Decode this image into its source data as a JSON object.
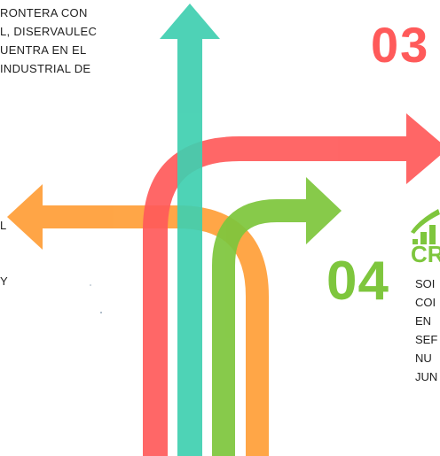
{
  "left_text": {
    "lines": [
      "RONTERA CON",
      "L, DISERVAULEC",
      "UENTRA EN EL",
      "INDUSTRIAL DE"
    ],
    "fragments": [
      "L",
      "Y"
    ]
  },
  "section_03": {
    "number": "03"
  },
  "section_04": {
    "number": "04",
    "heading": "CR",
    "icon": "bar-chart-icon",
    "lines": [
      "SOI",
      "COI",
      "EN",
      "SEF",
      "NU",
      "JUN"
    ]
  },
  "colors": {
    "red": "#ff5a5a",
    "teal": "#3fcfb0",
    "orange": "#ffa13d",
    "green": "#7ec63d"
  }
}
